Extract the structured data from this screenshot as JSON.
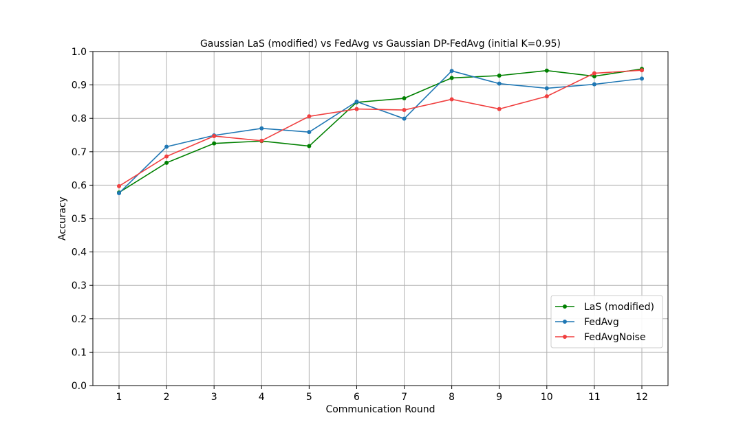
{
  "chart_data": {
    "type": "line",
    "title": "Gaussian LaS (modified) vs FedAvg vs Gaussian DP-FedAvg (initial K=0.95)",
    "xlabel": "Communication Round",
    "ylabel": "Accuracy",
    "x": [
      1,
      2,
      3,
      4,
      5,
      6,
      7,
      8,
      9,
      10,
      11,
      12
    ],
    "xticks": [
      "1",
      "2",
      "3",
      "4",
      "5",
      "6",
      "7",
      "8",
      "9",
      "10",
      "11",
      "12"
    ],
    "yticks": [
      "0.0",
      "0.1",
      "0.2",
      "0.3",
      "0.4",
      "0.5",
      "0.6",
      "0.7",
      "0.8",
      "0.9",
      "1.0"
    ],
    "xlim": [
      0.45,
      12.55
    ],
    "ylim": [
      0.0,
      1.0
    ],
    "grid": true,
    "legend_position": "lower-right",
    "series": [
      {
        "name": "LaS (modified)",
        "color": "#008000",
        "values": [
          0.578,
          0.667,
          0.725,
          0.732,
          0.717,
          0.848,
          0.86,
          0.921,
          0.928,
          0.943,
          0.926,
          0.948
        ]
      },
      {
        "name": "FedAvg",
        "color": "#1f77b4",
        "values": [
          0.576,
          0.715,
          0.749,
          0.77,
          0.759,
          0.85,
          0.799,
          0.942,
          0.904,
          0.89,
          0.902,
          0.919
        ]
      },
      {
        "name": "FedAvgNoise",
        "color": "#f04040",
        "values": [
          0.597,
          0.686,
          0.747,
          0.733,
          0.806,
          0.828,
          0.825,
          0.857,
          0.828,
          0.866,
          0.935,
          0.944
        ]
      }
    ]
  }
}
